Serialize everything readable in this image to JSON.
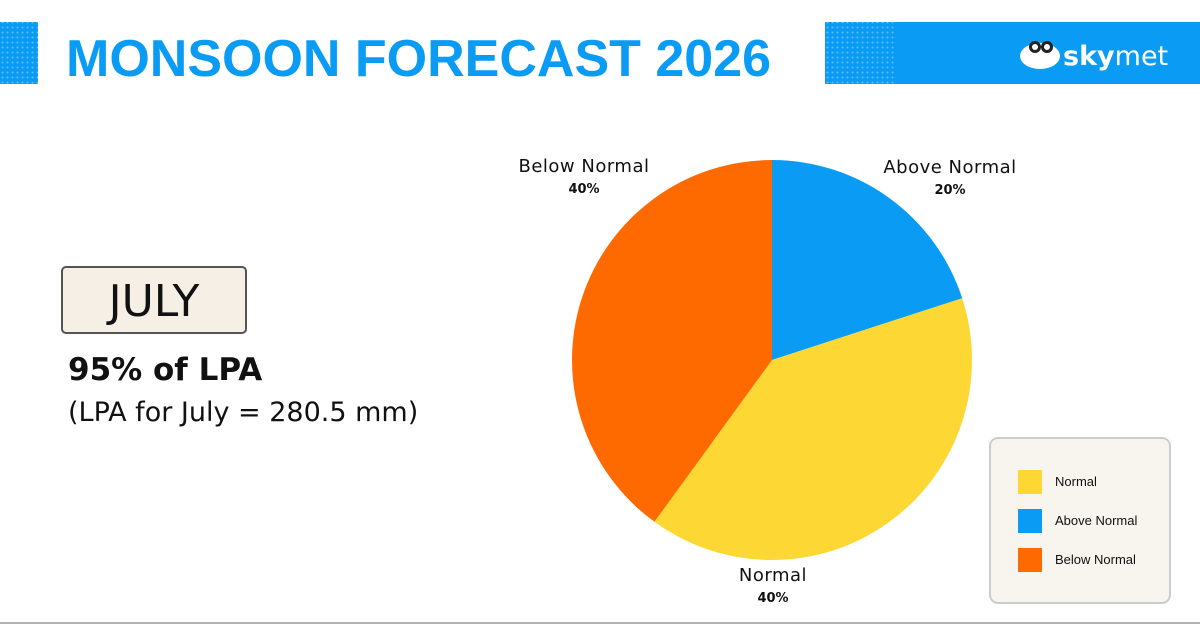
{
  "header": {
    "title": "MONSOON FORECAST 2026",
    "logo": {
      "sky": "sky",
      "met": "met"
    }
  },
  "panel": {
    "month": "JULY",
    "forecast": "95% of LPA",
    "note": "(LPA for July = 280.5 mm)"
  },
  "chart_data": {
    "type": "pie",
    "categories": [
      "Above Normal",
      "Normal",
      "Below Normal"
    ],
    "values": [
      20,
      40,
      40
    ],
    "value_labels": [
      "20%",
      "40%",
      "40%"
    ],
    "colors": [
      "#0a9bf5",
      "#fdd835",
      "#ff6a00"
    ],
    "legend": [
      "Normal",
      "Above Normal",
      "Below Normal"
    ],
    "legend_position": "lower right"
  }
}
